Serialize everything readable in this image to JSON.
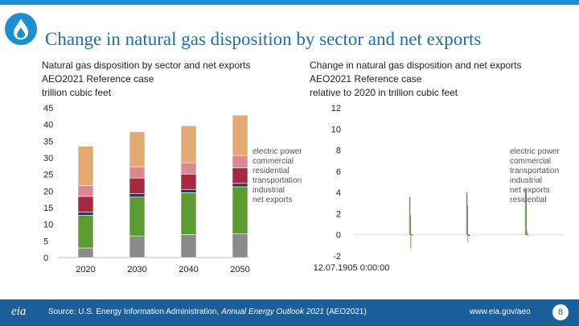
{
  "slide": {
    "title": "Change in natural gas disposition by sector and net exports",
    "source_prefix": "Source: U.S. Energy Information Administration, ",
    "source_title": "Annual Energy Outlook 2021",
    "source_suffix": " (AEO2021)",
    "url": "www.eia.gov/aeo",
    "page": "8",
    "logo_text": "eia"
  },
  "colors": {
    "electric power": "#e2aa72",
    "commercial": "#dd8791",
    "residential": "#a7293f",
    "transportation": "#23395d",
    "industrial": "#5a9c32",
    "net exports": "#8a8a8a"
  },
  "chart_data": [
    {
      "type": "bar",
      "stacked": true,
      "title_lines": [
        "Natural gas disposition by sector and net exports",
        "AEO2021 Reference case",
        "trillion cubic feet"
      ],
      "categories": [
        "2020",
        "2030",
        "2040",
        "2050"
      ],
      "ylim": [
        0,
        45
      ],
      "yticks": [
        "0",
        "5",
        "10",
        "15",
        "20",
        "25",
        "30",
        "35",
        "40",
        "45"
      ],
      "legend": [
        "electric power",
        "commercial",
        "residential",
        "transportation",
        "industrial",
        "net exports"
      ],
      "series": [
        {
          "name": "net exports",
          "values": [
            2.9,
            6.5,
            6.9,
            7.2
          ]
        },
        {
          "name": "industrial",
          "values": [
            9.8,
            11.7,
            12.6,
            14.1
          ]
        },
        {
          "name": "transportation",
          "values": [
            1.0,
            1.0,
            1.0,
            1.0
          ]
        },
        {
          "name": "residential",
          "values": [
            4.7,
            4.7,
            4.6,
            4.7
          ]
        },
        {
          "name": "commercial",
          "values": [
            3.3,
            3.4,
            3.4,
            3.6
          ]
        },
        {
          "name": "electric power",
          "values": [
            11.8,
            10.5,
            11.1,
            12.2
          ]
        }
      ]
    },
    {
      "type": "bar",
      "title_lines": [
        "Change in natural gas disposition and net exports",
        "AEO2021 Reference case",
        "relative to 2020 in trillion cubic feet"
      ],
      "x_tick_label": "12.07.1905 0:00:00",
      "ylim": [
        -2,
        12
      ],
      "yticks": [
        "-2",
        "0",
        "2",
        "4",
        "6",
        "8",
        "10",
        "12"
      ],
      "legend": [
        "electric power",
        "commercial",
        "transportation",
        "industrial",
        "net exports",
        "residential"
      ],
      "groups": [
        {
          "series": [
            {
              "name": "electric power",
              "value": -1.3
            },
            {
              "name": "commercial",
              "value": 0.1
            },
            {
              "name": "transportation",
              "value": 0.0
            },
            {
              "name": "industrial",
              "value": 1.9
            },
            {
              "name": "net exports",
              "value": 3.6
            },
            {
              "name": "residential",
              "value": 0.0
            }
          ]
        },
        {
          "series": [
            {
              "name": "electric power",
              "value": -0.7
            },
            {
              "name": "commercial",
              "value": 0.1
            },
            {
              "name": "transportation",
              "value": 0.0
            },
            {
              "name": "industrial",
              "value": 2.8
            },
            {
              "name": "net exports",
              "value": 4.0
            },
            {
              "name": "residential",
              "value": -0.1
            }
          ]
        },
        {
          "series": [
            {
              "name": "electric power",
              "value": 0.4
            },
            {
              "name": "commercial",
              "value": 0.3
            },
            {
              "name": "transportation",
              "value": 0.0
            },
            {
              "name": "industrial",
              "value": 4.3
            },
            {
              "name": "net exports",
              "value": 4.3
            },
            {
              "name": "residential",
              "value": 0.0
            }
          ]
        }
      ]
    }
  ]
}
